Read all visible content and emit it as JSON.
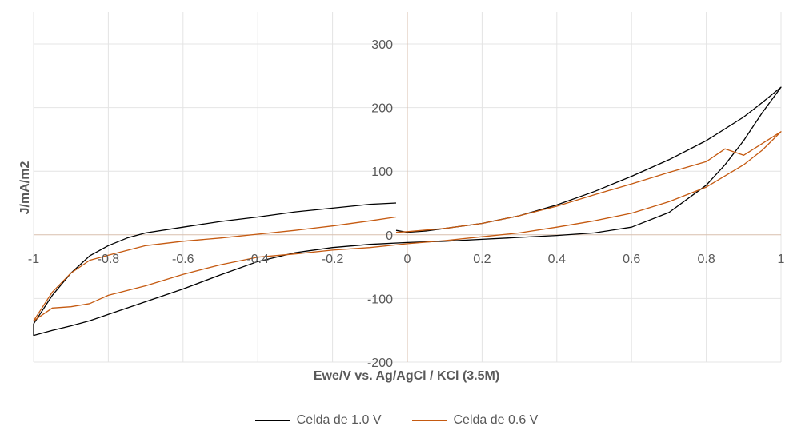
{
  "chart_data": {
    "type": "line",
    "title": "",
    "xlabel": "Ewe/V vs. Ag/AgCl / KCl (3.5M)",
    "ylabel": "J/mA/m2",
    "xlim": [
      -1,
      1
    ],
    "ylim": [
      -200,
      300
    ],
    "grid": true,
    "legend_position": "bottom",
    "x_ticks": [
      -1,
      -0.8,
      -0.6,
      -0.4,
      -0.2,
      0,
      0.2,
      0.4,
      0.6,
      0.8,
      1
    ],
    "x_tick_labels": [
      "-1",
      "-0.8",
      "-0.6",
      "-0.4",
      "-0.2",
      "0",
      "0.2",
      "0.4",
      "0.6",
      "0.8",
      "1"
    ],
    "y_ticks": [
      -200,
      -100,
      0,
      100,
      200,
      300
    ],
    "y_tick_labels": [
      "-200",
      "-100",
      "0",
      "100",
      "200",
      "300"
    ],
    "series": [
      {
        "name": "Celda de 1.0 V",
        "color": "#000000",
        "points": [
          [
            -0.03,
            50
          ],
          [
            -0.1,
            48
          ],
          [
            -0.2,
            42
          ],
          [
            -0.3,
            36
          ],
          [
            -0.4,
            28
          ],
          [
            -0.5,
            21
          ],
          [
            -0.6,
            12
          ],
          [
            -0.7,
            3
          ],
          [
            -0.75,
            -5
          ],
          [
            -0.8,
            -17
          ],
          [
            -0.85,
            -33
          ],
          [
            -0.9,
            -60
          ],
          [
            -0.95,
            -95
          ],
          [
            -1.0,
            -140
          ],
          [
            -1.0,
            -158
          ],
          [
            -0.95,
            -150
          ],
          [
            -0.9,
            -143
          ],
          [
            -0.85,
            -135
          ],
          [
            -0.8,
            -125
          ],
          [
            -0.7,
            -105
          ],
          [
            -0.6,
            -85
          ],
          [
            -0.5,
            -63
          ],
          [
            -0.4,
            -42
          ],
          [
            -0.3,
            -28
          ],
          [
            -0.2,
            -20
          ],
          [
            -0.1,
            -15
          ],
          [
            0.0,
            -12
          ],
          [
            0.1,
            -10
          ],
          [
            0.2,
            -7
          ],
          [
            0.3,
            -4
          ],
          [
            0.4,
            -1
          ],
          [
            0.5,
            3
          ],
          [
            0.6,
            12
          ],
          [
            0.7,
            35
          ],
          [
            0.8,
            78
          ],
          [
            0.85,
            110
          ],
          [
            0.9,
            148
          ],
          [
            0.95,
            192
          ],
          [
            1.0,
            232
          ],
          [
            0.95,
            208
          ],
          [
            0.9,
            185
          ],
          [
            0.8,
            148
          ],
          [
            0.7,
            118
          ],
          [
            0.6,
            92
          ],
          [
            0.5,
            68
          ],
          [
            0.4,
            47
          ],
          [
            0.3,
            30
          ],
          [
            0.2,
            18
          ],
          [
            0.1,
            10
          ],
          [
            0.05,
            6
          ],
          [
            0.0,
            4
          ],
          [
            -0.03,
            7
          ]
        ]
      },
      {
        "name": "Celda de 0.6 V",
        "color": "#c55a11",
        "points": [
          [
            -0.03,
            28
          ],
          [
            -0.1,
            22
          ],
          [
            -0.2,
            14
          ],
          [
            -0.3,
            7
          ],
          [
            -0.4,
            1
          ],
          [
            -0.5,
            -5
          ],
          [
            -0.6,
            -10
          ],
          [
            -0.7,
            -17
          ],
          [
            -0.8,
            -32
          ],
          [
            -0.85,
            -40
          ],
          [
            -0.9,
            -60
          ],
          [
            -0.95,
            -90
          ],
          [
            -1.0,
            -135
          ],
          [
            -0.95,
            -115
          ],
          [
            -0.9,
            -113
          ],
          [
            -0.85,
            -108
          ],
          [
            -0.8,
            -95
          ],
          [
            -0.7,
            -80
          ],
          [
            -0.6,
            -62
          ],
          [
            -0.5,
            -47
          ],
          [
            -0.4,
            -35
          ],
          [
            -0.3,
            -30
          ],
          [
            -0.2,
            -24
          ],
          [
            -0.1,
            -20
          ],
          [
            0.0,
            -14
          ],
          [
            0.1,
            -9
          ],
          [
            0.2,
            -3
          ],
          [
            0.3,
            3
          ],
          [
            0.4,
            12
          ],
          [
            0.5,
            22
          ],
          [
            0.6,
            34
          ],
          [
            0.7,
            52
          ],
          [
            0.8,
            75
          ],
          [
            0.9,
            110
          ],
          [
            0.95,
            133
          ],
          [
            1.0,
            162
          ],
          [
            0.9,
            125
          ],
          [
            0.85,
            135
          ],
          [
            0.8,
            115
          ],
          [
            0.7,
            98
          ],
          [
            0.6,
            80
          ],
          [
            0.5,
            63
          ],
          [
            0.4,
            45
          ],
          [
            0.3,
            30
          ],
          [
            0.2,
            18
          ],
          [
            0.1,
            10
          ],
          [
            0.0,
            5
          ],
          [
            -0.03,
            4
          ]
        ]
      }
    ]
  }
}
